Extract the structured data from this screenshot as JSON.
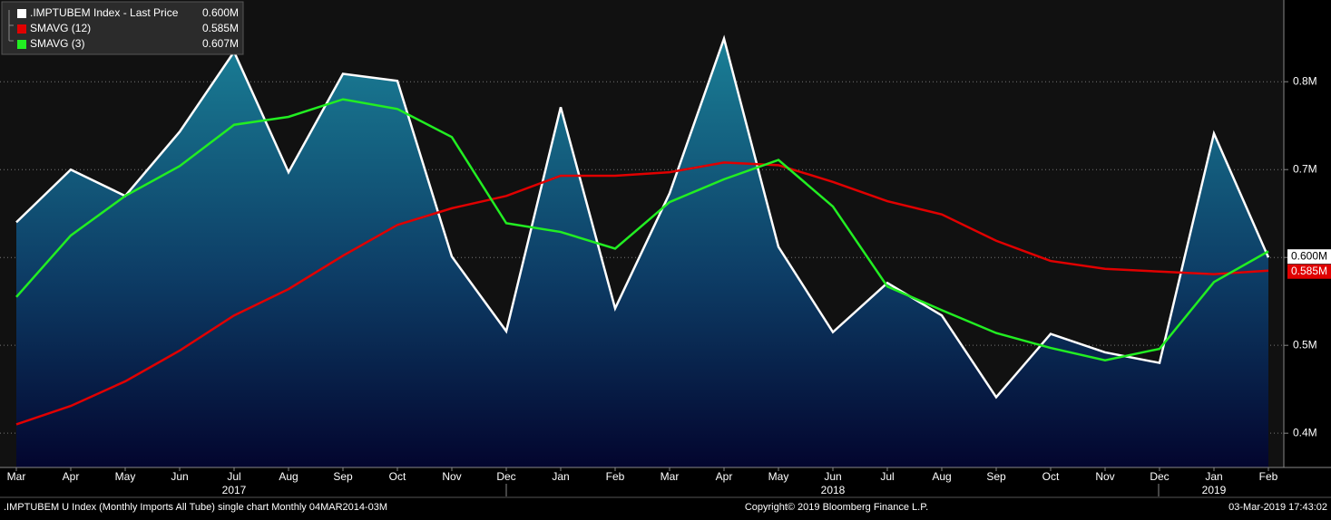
{
  "chart_data": {
    "type": "line",
    "categories": [
      "Mar",
      "Apr",
      "May",
      "Jun",
      "Jul",
      "Aug",
      "Sep",
      "Oct",
      "Nov",
      "Dec",
      "Jan",
      "Feb",
      "Mar",
      "Apr",
      "May",
      "Jun",
      "Jul",
      "Aug",
      "Sep",
      "Oct",
      "Nov",
      "Dec",
      "Jan",
      "Feb"
    ],
    "year_labels": [
      {
        "label": "2017",
        "at": 4
      },
      {
        "label": "2018",
        "at": 15
      },
      {
        "label": "2019",
        "at": 22
      }
    ],
    "series": [
      {
        "name": ".IMPTUBEM Index - Last Price",
        "legend_value": "0.600M",
        "color": "#ffffff",
        "area": true,
        "values": [
          0.64,
          0.7,
          0.67,
          0.743,
          0.834,
          0.697,
          0.809,
          0.801,
          0.601,
          0.516,
          0.771,
          0.542,
          0.673,
          0.849,
          0.612,
          0.515,
          0.571,
          0.534,
          0.441,
          0.513,
          0.492,
          0.48,
          0.741,
          0.6
        ]
      },
      {
        "name": "SMAVG (12)",
        "legend_value": "0.585M",
        "color": "#e00000",
        "values": [
          0.41,
          0.431,
          0.459,
          0.494,
          0.534,
          0.564,
          0.602,
          0.637,
          0.656,
          0.67,
          0.693,
          0.693,
          0.697,
          0.708,
          0.705,
          0.686,
          0.664,
          0.649,
          0.619,
          0.596,
          0.587,
          0.584,
          0.581,
          0.585
        ]
      },
      {
        "name": "SMAVG (3)",
        "legend_value": "0.607M",
        "color": "#22ee22",
        "values": [
          0.555,
          0.625,
          0.67,
          0.704,
          0.751,
          0.76,
          0.78,
          0.769,
          0.737,
          0.639,
          0.629,
          0.61,
          0.663,
          0.689,
          0.711,
          0.658,
          0.567,
          0.54,
          0.514,
          0.497,
          0.483,
          0.496,
          0.572,
          0.607
        ]
      }
    ],
    "ylim": [
      0.361,
      0.893
    ],
    "yticks": [
      {
        "value": 0.4,
        "label": "0.4M"
      },
      {
        "value": 0.5,
        "label": "0.5M"
      },
      {
        "value": 0.6,
        "label": "0.6M"
      },
      {
        "value": 0.7,
        "label": "0.7M"
      },
      {
        "value": 0.8,
        "label": "0.8M"
      }
    ],
    "hidden_tick_labels": [
      2
    ],
    "grid": true,
    "footer": {
      "left": ".IMPTUBEM U Index (Monthly Imports All Tube) single chart  Monthly 04MAR2014-03M",
      "center": "Copyright© 2019 Bloomberg Finance L.P.",
      "right": "03-Mar-2019 17:43:02"
    }
  }
}
